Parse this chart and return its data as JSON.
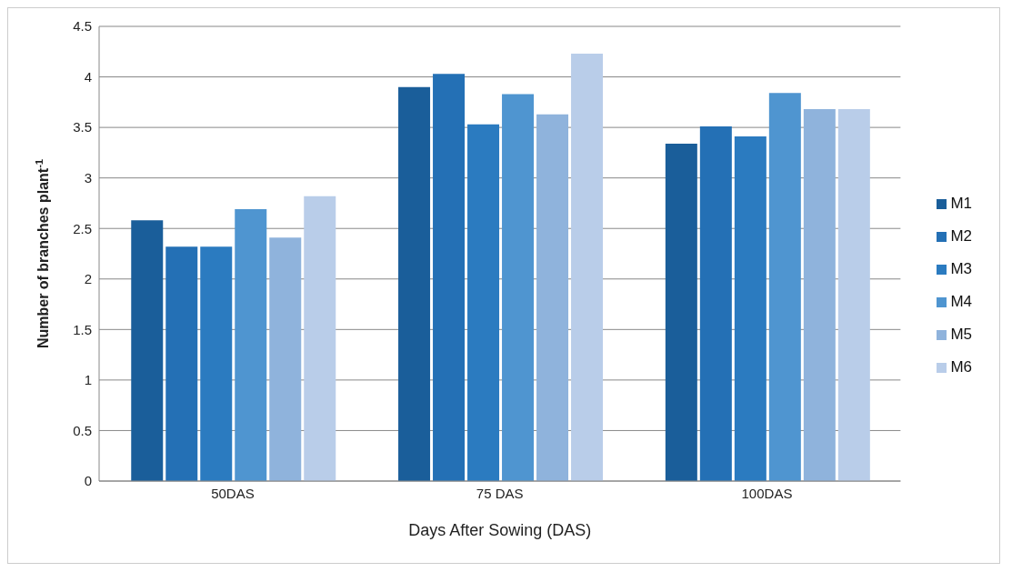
{
  "chart_data": {
    "type": "bar",
    "xlabel": "Days After Sowing (DAS)",
    "ylabel": "Number of branches plant$^{-1}$",
    "categories": [
      "50DAS",
      "75 DAS",
      "100DAS"
    ],
    "series": [
      {
        "name": "M1",
        "color": "#1a5e9a",
        "values": [
          2.58,
          3.9,
          3.34
        ]
      },
      {
        "name": "M2",
        "color": "#2470b5",
        "values": [
          2.32,
          4.03,
          3.51
        ]
      },
      {
        "name": "M3",
        "color": "#2b7bc0",
        "values": [
          2.32,
          3.53,
          3.41
        ]
      },
      {
        "name": "M4",
        "color": "#4f95d0",
        "values": [
          2.69,
          3.83,
          3.84
        ]
      },
      {
        "name": "M5",
        "color": "#8fb3dc",
        "values": [
          2.41,
          3.63,
          3.68
        ]
      },
      {
        "name": "M6",
        "color": "#b9cde9",
        "values": [
          2.82,
          4.23,
          3.68
        ]
      }
    ],
    "ylim": [
      0,
      4.5
    ],
    "yticks": [
      0,
      0.5,
      1,
      1.5,
      2,
      2.5,
      3,
      3.5,
      4,
      4.5
    ],
    "grid": "y",
    "legend": "right"
  }
}
